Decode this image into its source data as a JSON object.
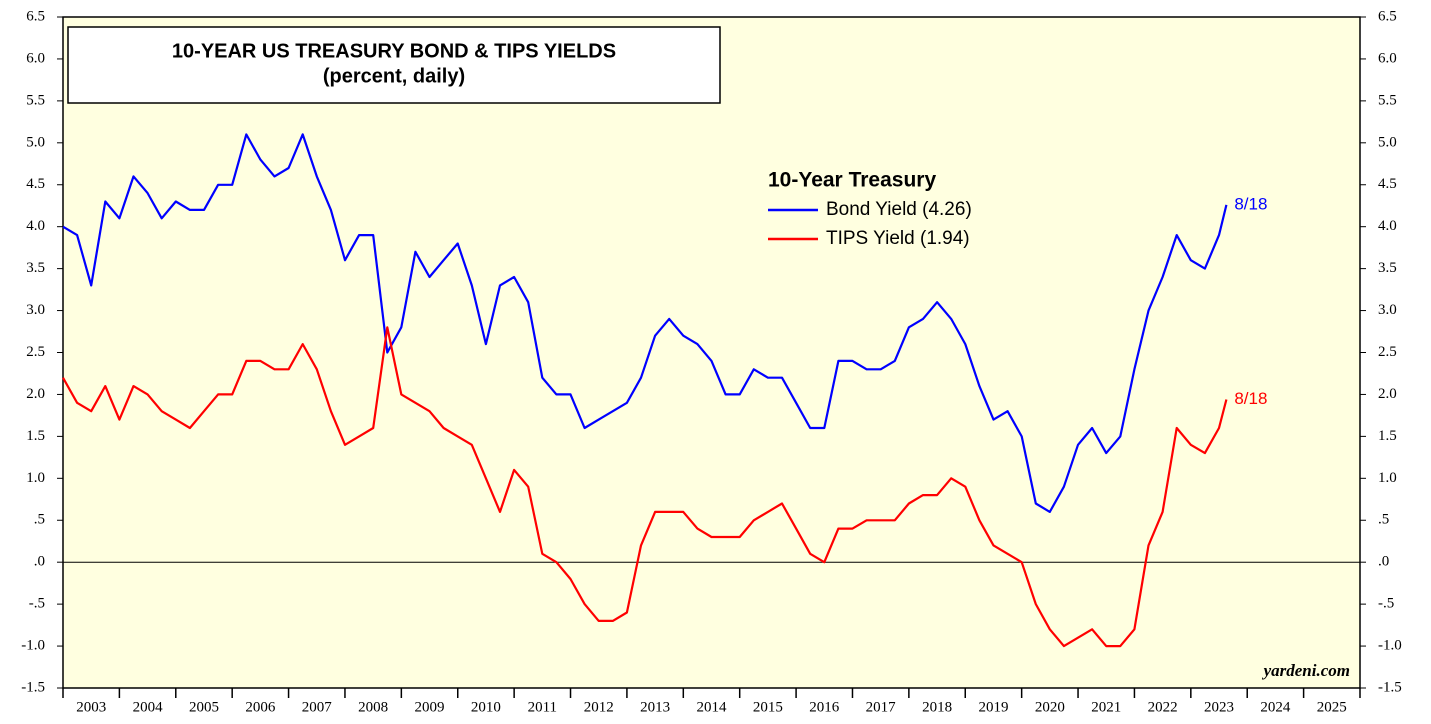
{
  "chart_data": {
    "type": "line",
    "title": "10-YEAR US TREASURY BOND & TIPS YIELDS",
    "subtitle": "(percent, daily)",
    "legend_title": "10-Year Treasury",
    "source": "yardeni.com",
    "x": [
      2003.0,
      2003.25,
      2003.5,
      2003.75,
      2004.0,
      2004.25,
      2004.5,
      2004.75,
      2005.0,
      2005.25,
      2005.5,
      2005.75,
      2006.0,
      2006.25,
      2006.5,
      2006.75,
      2007.0,
      2007.25,
      2007.5,
      2007.75,
      2008.0,
      2008.25,
      2008.5,
      2008.75,
      2009.0,
      2009.25,
      2009.5,
      2009.75,
      2010.0,
      2010.25,
      2010.5,
      2010.75,
      2011.0,
      2011.25,
      2011.5,
      2011.75,
      2012.0,
      2012.25,
      2012.5,
      2012.75,
      2013.0,
      2013.25,
      2013.5,
      2013.75,
      2014.0,
      2014.25,
      2014.5,
      2014.75,
      2015.0,
      2015.25,
      2015.5,
      2015.75,
      2016.0,
      2016.25,
      2016.5,
      2016.75,
      2017.0,
      2017.25,
      2017.5,
      2017.75,
      2018.0,
      2018.25,
      2018.5,
      2018.75,
      2019.0,
      2019.25,
      2019.5,
      2019.75,
      2020.0,
      2020.25,
      2020.5,
      2020.75,
      2021.0,
      2021.25,
      2021.5,
      2021.75,
      2022.0,
      2022.25,
      2022.5,
      2022.75,
      2023.0,
      2023.25,
      2023.5,
      2023.63
    ],
    "series": [
      {
        "name": "Bond Yield (4.26)",
        "color": "#0000ff",
        "end_label": "8/18",
        "values": [
          4.0,
          3.9,
          3.3,
          4.3,
          4.1,
          4.6,
          4.4,
          4.1,
          4.3,
          4.2,
          4.2,
          4.5,
          4.5,
          5.1,
          4.8,
          4.6,
          4.7,
          5.1,
          4.6,
          4.2,
          3.6,
          3.9,
          3.9,
          2.5,
          2.8,
          3.7,
          3.4,
          3.6,
          3.8,
          3.3,
          2.6,
          3.3,
          3.4,
          3.1,
          2.2,
          2.0,
          2.0,
          1.6,
          1.7,
          1.8,
          1.9,
          2.2,
          2.7,
          2.9,
          2.7,
          2.6,
          2.4,
          2.0,
          2.0,
          2.3,
          2.2,
          2.2,
          1.9,
          1.6,
          1.6,
          2.4,
          2.4,
          2.3,
          2.3,
          2.4,
          2.8,
          2.9,
          3.1,
          2.9,
          2.6,
          2.1,
          1.7,
          1.8,
          1.5,
          0.7,
          0.6,
          0.9,
          1.4,
          1.6,
          1.3,
          1.5,
          2.3,
          3.0,
          3.4,
          3.9,
          3.6,
          3.5,
          3.9,
          4.26
        ]
      },
      {
        "name": "TIPS Yield (1.94)",
        "color": "#ff0000",
        "end_label": "8/18",
        "values": [
          2.2,
          1.9,
          1.8,
          2.1,
          1.7,
          2.1,
          2.0,
          1.8,
          1.7,
          1.6,
          1.8,
          2.0,
          2.0,
          2.4,
          2.4,
          2.3,
          2.3,
          2.6,
          2.3,
          1.8,
          1.4,
          1.5,
          1.6,
          2.8,
          2.0,
          1.9,
          1.8,
          1.6,
          1.5,
          1.4,
          1.0,
          0.6,
          1.1,
          0.9,
          0.1,
          0.0,
          -0.2,
          -0.5,
          -0.7,
          -0.7,
          -0.6,
          0.2,
          0.6,
          0.6,
          0.6,
          0.4,
          0.3,
          0.3,
          0.3,
          0.5,
          0.6,
          0.7,
          0.4,
          0.1,
          0.0,
          0.4,
          0.4,
          0.5,
          0.5,
          0.5,
          0.7,
          0.8,
          0.8,
          1.0,
          0.9,
          0.5,
          0.2,
          0.1,
          0.0,
          -0.5,
          -0.8,
          -1.0,
          -0.9,
          -0.8,
          -1.0,
          -1.0,
          -0.8,
          0.2,
          0.6,
          1.6,
          1.4,
          1.3,
          1.6,
          1.94
        ]
      }
    ],
    "xlim": [
      2003,
      2026
    ],
    "xticks": [
      2003,
      2004,
      2005,
      2006,
      2007,
      2008,
      2009,
      2010,
      2011,
      2012,
      2013,
      2014,
      2015,
      2016,
      2017,
      2018,
      2019,
      2020,
      2021,
      2022,
      2023,
      2024,
      2025,
      2026
    ],
    "year_labels": [
      2003,
      2004,
      2005,
      2006,
      2007,
      2008,
      2009,
      2010,
      2011,
      2012,
      2013,
      2014,
      2015,
      2016,
      2017,
      2018,
      2019,
      2020,
      2021,
      2022,
      2023,
      2024,
      2025
    ],
    "ylim": [
      -1.5,
      6.5
    ],
    "yticks": [
      6.5,
      {
        "value": 6,
        "label": "6.0"
      },
      5.5,
      {
        "value": 5,
        "label": "5.0"
      },
      4.5,
      {
        "value": 4,
        "label": "4.0"
      },
      3.5,
      {
        "value": 3,
        "label": "3.0"
      },
      2.5,
      {
        "value": 2,
        "label": "2.0"
      },
      1.5,
      {
        "value": 1,
        "label": "1.0"
      },
      {
        "value": 0.5,
        "label": ".5"
      },
      {
        "value": 0,
        "label": ".0"
      },
      {
        "value": -0.5,
        "label": "-.5"
      },
      {
        "value": -1,
        "label": "-1.0"
      },
      -1.5
    ],
    "background": "#ffffe0"
  }
}
